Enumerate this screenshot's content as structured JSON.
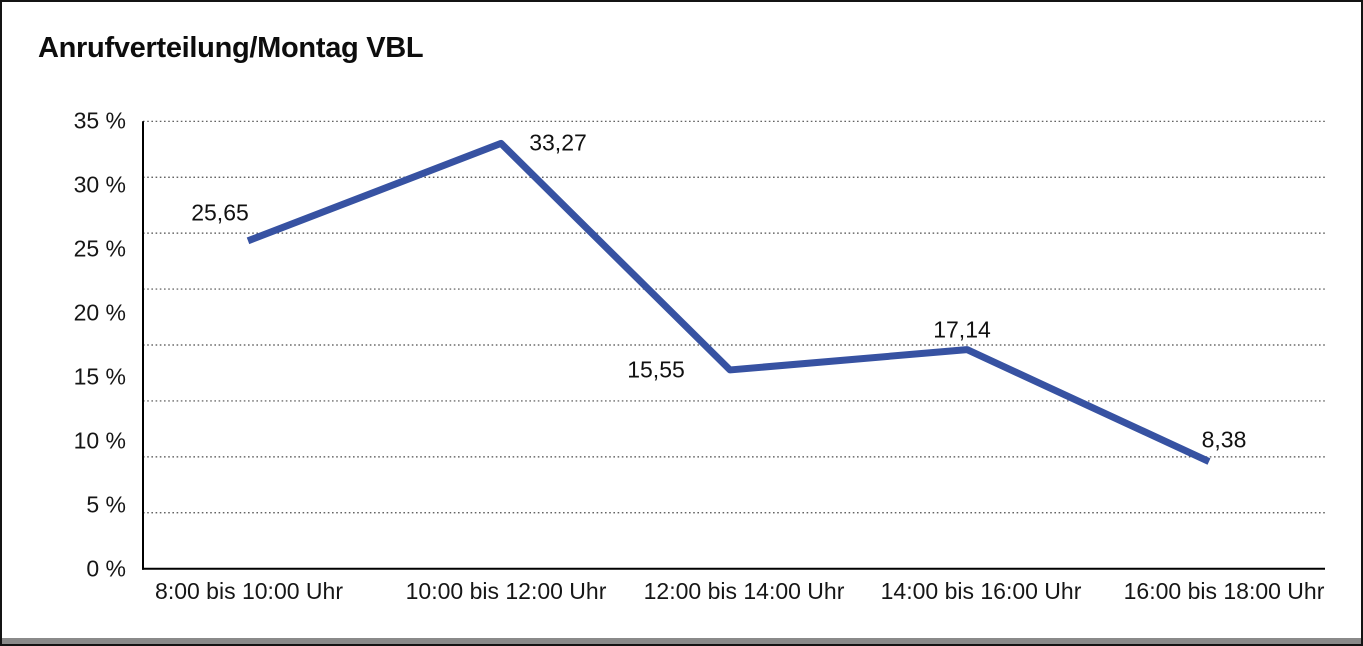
{
  "window": {
    "title": "Anrufverteilung/Montag VBL"
  },
  "chart_data": {
    "type": "line",
    "title": "Anrufverteilung/Montag VBL",
    "categories": [
      "8:00 bis 10:00 Uhr",
      "10:00 bis 12:00 Uhr",
      "12:00 bis 14:00 Uhr",
      "14:00 bis 16:00 Uhr",
      "16:00 bis 18:00 Uhr"
    ],
    "series": [
      {
        "name": "Anrufverteilung Montag VBL",
        "values": [
          25.65,
          33.27,
          15.55,
          17.14,
          8.38
        ]
      }
    ],
    "value_labels": [
      "25,65",
      "33,27",
      "15,55",
      "17,14",
      "8,38"
    ],
    "y_tick_labels": [
      "35 %",
      "30 %",
      "25 %",
      "20 %",
      "15 %",
      "10 %",
      "5 %",
      "0 %"
    ],
    "xlabel": "",
    "ylabel": "",
    "ylim": [
      0,
      35
    ],
    "grid": "horizontal-dotted",
    "legend_position": "none",
    "line_color": "#3752A2",
    "axis_color": "#000000",
    "gridline_color": "#4d4d4d",
    "text_color": "#161616"
  }
}
